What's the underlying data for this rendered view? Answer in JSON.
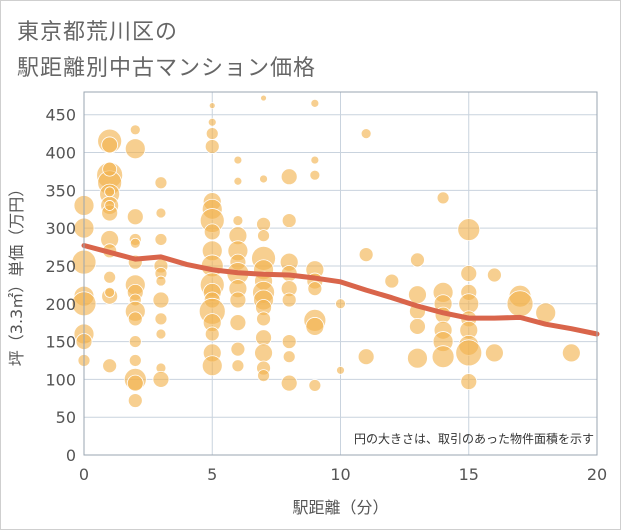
{
  "chart_data": {
    "type": "scatter",
    "title_lines": [
      "東京都荒川区の",
      "駅距離別中古マンション価格"
    ],
    "xlabel": "駅距離（分）",
    "ylabel": "坪（3.3㎡）単価（万円）",
    "note": "円の大きさは、取引のあった物件面積を示す",
    "xlim": [
      0,
      20
    ],
    "ylim": [
      0,
      480
    ],
    "x_ticks": [
      0,
      5,
      10,
      15,
      20
    ],
    "y_ticks": [
      0,
      50,
      100,
      150,
      200,
      250,
      300,
      350,
      400,
      450
    ],
    "grid": true,
    "colors": {
      "bubble": "#f2b14c",
      "trend": "#d9654b",
      "grid": "#c9d3de",
      "text": "#555555"
    },
    "points": [
      {
        "x": 0,
        "y": 330,
        "r": 10
      },
      {
        "x": 0,
        "y": 300,
        "r": 10
      },
      {
        "x": 0,
        "y": 255,
        "r": 12
      },
      {
        "x": 0,
        "y": 210,
        "r": 10
      },
      {
        "x": 0,
        "y": 200,
        "r": 12
      },
      {
        "x": 0,
        "y": 160,
        "r": 10
      },
      {
        "x": 0,
        "y": 150,
        "r": 8
      },
      {
        "x": 0,
        "y": 125,
        "r": 6
      },
      {
        "x": 1,
        "y": 370,
        "r": 13
      },
      {
        "x": 1,
        "y": 360,
        "r": 12
      },
      {
        "x": 1,
        "y": 345,
        "r": 10
      },
      {
        "x": 1,
        "y": 330,
        "r": 9
      },
      {
        "x": 1,
        "y": 320,
        "r": 8
      },
      {
        "x": 1,
        "y": 415,
        "r": 12
      },
      {
        "x": 1,
        "y": 410,
        "r": 8
      },
      {
        "x": 1,
        "y": 378,
        "r": 7
      },
      {
        "x": 1,
        "y": 348,
        "r": 5
      },
      {
        "x": 1,
        "y": 330,
        "r": 5
      },
      {
        "x": 1,
        "y": 285,
        "r": 9
      },
      {
        "x": 1,
        "y": 270,
        "r": 7
      },
      {
        "x": 1,
        "y": 235,
        "r": 6
      },
      {
        "x": 1,
        "y": 210,
        "r": 8
      },
      {
        "x": 1,
        "y": 215,
        "r": 5
      },
      {
        "x": 1,
        "y": 118,
        "r": 7
      },
      {
        "x": 2,
        "y": 430,
        "r": 5
      },
      {
        "x": 2,
        "y": 405,
        "r": 10
      },
      {
        "x": 2,
        "y": 315,
        "r": 8
      },
      {
        "x": 2,
        "y": 285,
        "r": 6
      },
      {
        "x": 2,
        "y": 280,
        "r": 5
      },
      {
        "x": 2,
        "y": 255,
        "r": 7
      },
      {
        "x": 2,
        "y": 225,
        "r": 10
      },
      {
        "x": 2,
        "y": 215,
        "r": 8
      },
      {
        "x": 2,
        "y": 205,
        "r": 6
      },
      {
        "x": 2,
        "y": 190,
        "r": 10
      },
      {
        "x": 2,
        "y": 180,
        "r": 7
      },
      {
        "x": 2,
        "y": 150,
        "r": 6
      },
      {
        "x": 2,
        "y": 125,
        "r": 6
      },
      {
        "x": 2,
        "y": 100,
        "r": 11
      },
      {
        "x": 2,
        "y": 95,
        "r": 8
      },
      {
        "x": 2,
        "y": 72,
        "r": 7
      },
      {
        "x": 3,
        "y": 360,
        "r": 6
      },
      {
        "x": 3,
        "y": 320,
        "r": 5
      },
      {
        "x": 3,
        "y": 285,
        "r": 6
      },
      {
        "x": 3,
        "y": 250,
        "r": 7
      },
      {
        "x": 3,
        "y": 240,
        "r": 6
      },
      {
        "x": 3,
        "y": 230,
        "r": 5
      },
      {
        "x": 3,
        "y": 205,
        "r": 8
      },
      {
        "x": 3,
        "y": 180,
        "r": 6
      },
      {
        "x": 3,
        "y": 160,
        "r": 5
      },
      {
        "x": 3,
        "y": 115,
        "r": 5
      },
      {
        "x": 3,
        "y": 100,
        "r": 8
      },
      {
        "x": 5,
        "y": 462,
        "r": 3
      },
      {
        "x": 5,
        "y": 440,
        "r": 4
      },
      {
        "x": 5,
        "y": 425,
        "r": 6
      },
      {
        "x": 5,
        "y": 408,
        "r": 7
      },
      {
        "x": 5,
        "y": 335,
        "r": 9
      },
      {
        "x": 5,
        "y": 325,
        "r": 10
      },
      {
        "x": 5,
        "y": 310,
        "r": 12
      },
      {
        "x": 5,
        "y": 295,
        "r": 8
      },
      {
        "x": 5,
        "y": 270,
        "r": 10
      },
      {
        "x": 5,
        "y": 250,
        "r": 11
      },
      {
        "x": 5,
        "y": 225,
        "r": 12
      },
      {
        "x": 5,
        "y": 215,
        "r": 9
      },
      {
        "x": 5,
        "y": 205,
        "r": 8
      },
      {
        "x": 5,
        "y": 190,
        "r": 13
      },
      {
        "x": 5,
        "y": 175,
        "r": 9
      },
      {
        "x": 5,
        "y": 160,
        "r": 7
      },
      {
        "x": 5,
        "y": 135,
        "r": 9
      },
      {
        "x": 5,
        "y": 118,
        "r": 10
      },
      {
        "x": 6,
        "y": 390,
        "r": 4
      },
      {
        "x": 6,
        "y": 362,
        "r": 4
      },
      {
        "x": 6,
        "y": 310,
        "r": 5
      },
      {
        "x": 6,
        "y": 290,
        "r": 9
      },
      {
        "x": 6,
        "y": 270,
        "r": 10
      },
      {
        "x": 6,
        "y": 255,
        "r": 8
      },
      {
        "x": 6,
        "y": 240,
        "r": 11
      },
      {
        "x": 6,
        "y": 220,
        "r": 9
      },
      {
        "x": 6,
        "y": 205,
        "r": 8
      },
      {
        "x": 6,
        "y": 175,
        "r": 8
      },
      {
        "x": 6,
        "y": 140,
        "r": 7
      },
      {
        "x": 6,
        "y": 118,
        "r": 6
      },
      {
        "x": 7,
        "y": 472,
        "r": 3
      },
      {
        "x": 7,
        "y": 365,
        "r": 4
      },
      {
        "x": 7,
        "y": 305,
        "r": 7
      },
      {
        "x": 7,
        "y": 290,
        "r": 6
      },
      {
        "x": 7,
        "y": 260,
        "r": 12
      },
      {
        "x": 7,
        "y": 245,
        "r": 10
      },
      {
        "x": 7,
        "y": 230,
        "r": 9
      },
      {
        "x": 7,
        "y": 215,
        "r": 11
      },
      {
        "x": 7,
        "y": 205,
        "r": 10
      },
      {
        "x": 7,
        "y": 195,
        "r": 8
      },
      {
        "x": 7,
        "y": 180,
        "r": 7
      },
      {
        "x": 7,
        "y": 155,
        "r": 8
      },
      {
        "x": 7,
        "y": 135,
        "r": 9
      },
      {
        "x": 7,
        "y": 115,
        "r": 7
      },
      {
        "x": 7,
        "y": 105,
        "r": 6
      },
      {
        "x": 8,
        "y": 368,
        "r": 8
      },
      {
        "x": 8,
        "y": 310,
        "r": 7
      },
      {
        "x": 8,
        "y": 255,
        "r": 9
      },
      {
        "x": 8,
        "y": 240,
        "r": 8
      },
      {
        "x": 8,
        "y": 220,
        "r": 8
      },
      {
        "x": 8,
        "y": 205,
        "r": 7
      },
      {
        "x": 8,
        "y": 150,
        "r": 7
      },
      {
        "x": 8,
        "y": 130,
        "r": 6
      },
      {
        "x": 8,
        "y": 95,
        "r": 8
      },
      {
        "x": 9,
        "y": 465,
        "r": 4
      },
      {
        "x": 9,
        "y": 390,
        "r": 4
      },
      {
        "x": 9,
        "y": 370,
        "r": 5
      },
      {
        "x": 9,
        "y": 245,
        "r": 9
      },
      {
        "x": 9,
        "y": 230,
        "r": 8
      },
      {
        "x": 9,
        "y": 220,
        "r": 7
      },
      {
        "x": 9,
        "y": 178,
        "r": 11
      },
      {
        "x": 9,
        "y": 170,
        "r": 9
      },
      {
        "x": 9,
        "y": 92,
        "r": 6
      },
      {
        "x": 10,
        "y": 200,
        "r": 5
      },
      {
        "x": 10,
        "y": 112,
        "r": 4
      },
      {
        "x": 11,
        "y": 425,
        "r": 5
      },
      {
        "x": 11,
        "y": 265,
        "r": 7
      },
      {
        "x": 11,
        "y": 130,
        "r": 8
      },
      {
        "x": 12,
        "y": 230,
        "r": 7
      },
      {
        "x": 13,
        "y": 258,
        "r": 7
      },
      {
        "x": 13,
        "y": 212,
        "r": 9
      },
      {
        "x": 13,
        "y": 190,
        "r": 8
      },
      {
        "x": 13,
        "y": 170,
        "r": 8
      },
      {
        "x": 13,
        "y": 128,
        "r": 10
      },
      {
        "x": 14,
        "y": 340,
        "r": 6
      },
      {
        "x": 14,
        "y": 215,
        "r": 10
      },
      {
        "x": 14,
        "y": 200,
        "r": 9
      },
      {
        "x": 14,
        "y": 185,
        "r": 8
      },
      {
        "x": 14,
        "y": 165,
        "r": 9
      },
      {
        "x": 14,
        "y": 150,
        "r": 10
      },
      {
        "x": 14,
        "y": 130,
        "r": 11
      },
      {
        "x": 15,
        "y": 298,
        "r": 11
      },
      {
        "x": 15,
        "y": 240,
        "r": 8
      },
      {
        "x": 15,
        "y": 215,
        "r": 8
      },
      {
        "x": 15,
        "y": 200,
        "r": 10
      },
      {
        "x": 15,
        "y": 180,
        "r": 8
      },
      {
        "x": 15,
        "y": 165,
        "r": 9
      },
      {
        "x": 15,
        "y": 145,
        "r": 10
      },
      {
        "x": 15,
        "y": 135,
        "r": 13
      },
      {
        "x": 15,
        "y": 97,
        "r": 8
      },
      {
        "x": 16,
        "y": 238,
        "r": 7
      },
      {
        "x": 16,
        "y": 135,
        "r": 9
      },
      {
        "x": 17,
        "y": 210,
        "r": 11
      },
      {
        "x": 17,
        "y": 200,
        "r": 13
      },
      {
        "x": 18,
        "y": 188,
        "r": 10
      },
      {
        "x": 19,
        "y": 135,
        "r": 9
      }
    ],
    "trend": {
      "x": [
        0,
        1,
        2,
        3,
        4,
        5,
        6,
        7,
        8,
        9,
        10,
        11,
        12,
        13,
        14,
        15,
        16,
        17,
        18,
        19,
        20
      ],
      "y": [
        277,
        268,
        259,
        262,
        252,
        245,
        241,
        239,
        238,
        234,
        229,
        218,
        208,
        197,
        188,
        181,
        181,
        182,
        173,
        167,
        160
      ]
    }
  }
}
